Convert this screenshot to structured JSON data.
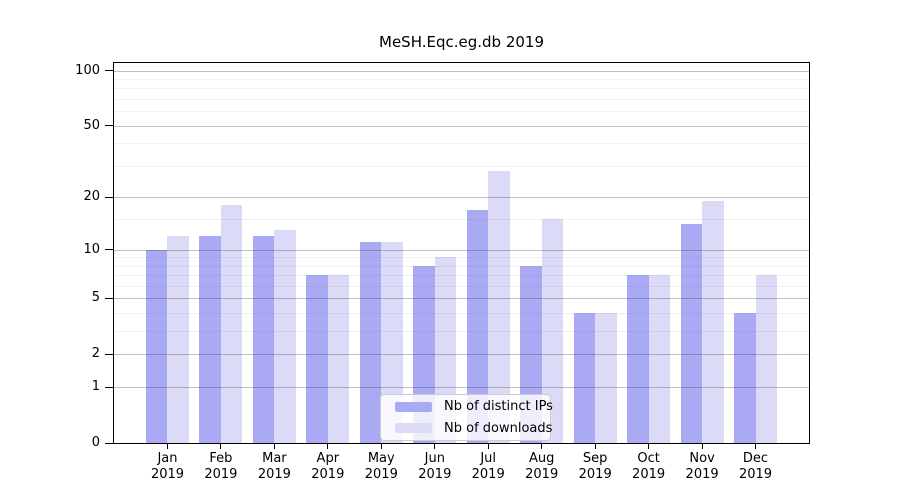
{
  "title": "MeSH.Eqc.eg.db 2019",
  "chart_data": {
    "type": "bar",
    "title": "MeSH.Eqc.eg.db 2019",
    "categories": [
      "Jan",
      "Feb",
      "Mar",
      "Apr",
      "May",
      "Jun",
      "Jul",
      "Aug",
      "Sep",
      "Oct",
      "Nov",
      "Dec"
    ],
    "category_year": "2019",
    "series": [
      {
        "name": "Nb of distinct IPs",
        "color": "#a9a9f4",
        "values": [
          10,
          12,
          12,
          7,
          11,
          8,
          17,
          8,
          4,
          7,
          14,
          4
        ]
      },
      {
        "name": "Nb of downloads",
        "color": "#dbdbf8",
        "values": [
          12,
          18,
          13,
          7,
          11,
          9,
          28,
          15,
          4,
          7,
          19,
          7
        ]
      }
    ],
    "xlabel": "",
    "ylabel": "",
    "yscale": "log1p",
    "ylim": [
      0,
      110
    ],
    "yticks": [
      0,
      1,
      2,
      5,
      10,
      20,
      50,
      100
    ],
    "yticks_minor": [
      3,
      4,
      6,
      7,
      8,
      9,
      15,
      30,
      40,
      60,
      70,
      80,
      90
    ],
    "grid": true,
    "legend_position": "lower center"
  },
  "colors": {
    "distinct_ips": "#a9a9f4",
    "downloads": "#dbdbf8",
    "grid_major": "#b8b8b8",
    "grid_minor": "#ececec",
    "axis": "#000000",
    "background": "#ffffff"
  }
}
